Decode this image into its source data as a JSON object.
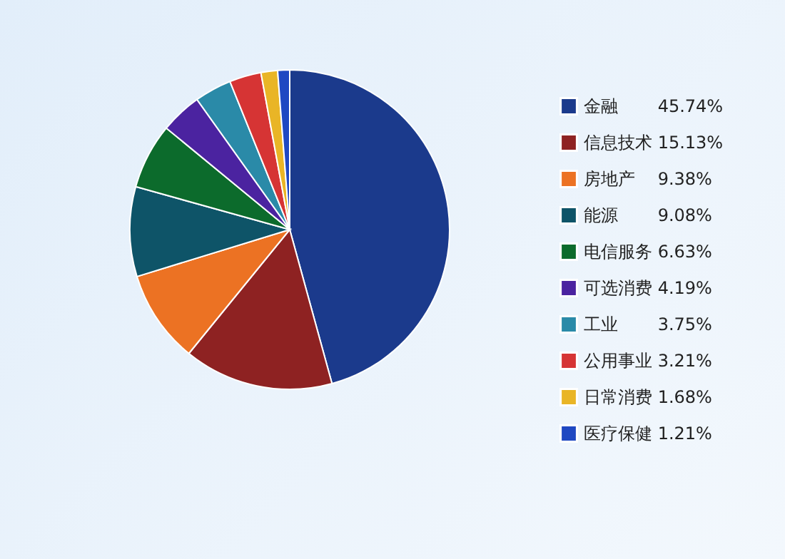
{
  "chart_data": {
    "type": "pie",
    "categories": [
      "金融",
      "信息技术",
      "房地产",
      "能源",
      "电信服务",
      "可选消费",
      "工业",
      "公用事业",
      "日常消费",
      "医疗保健"
    ],
    "values": [
      45.74,
      15.13,
      9.38,
      9.08,
      6.63,
      4.19,
      3.75,
      3.21,
      1.68,
      1.21
    ],
    "value_labels": [
      "45.74%",
      "15.13%",
      "9.38%",
      "9.08%",
      "6.63%",
      "4.19%",
      "3.75%",
      "3.21%",
      "1.68%",
      "1.21%"
    ],
    "colors": [
      "#1b3a8c",
      "#8e2222",
      "#ec7223",
      "#0e5468",
      "#0c6b2c",
      "#4b23a0",
      "#2a8aa8",
      "#d63434",
      "#e9b526",
      "#1f48c2"
    ],
    "legend": "right"
  }
}
